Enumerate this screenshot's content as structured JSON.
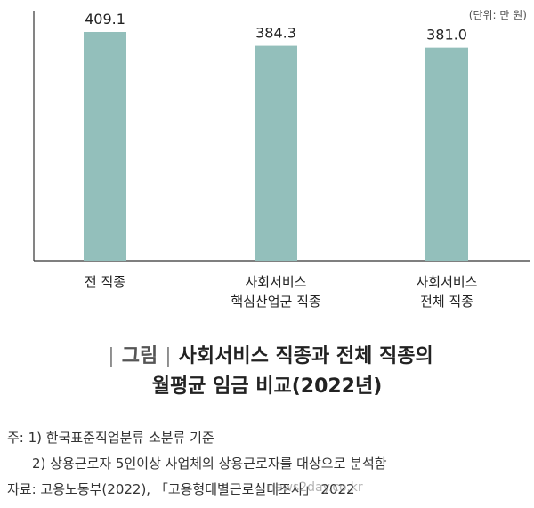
{
  "chart_data": {
    "type": "bar",
    "categories": [
      [
        "전 직종"
      ],
      [
        "사회서비스",
        "핵심산업군 직종"
      ],
      [
        "사회서비스",
        "전체 직종"
      ]
    ],
    "values": [
      409.1,
      384.3,
      381.0
    ],
    "value_labels": [
      "409.1",
      "384.3",
      "381.0"
    ],
    "unit_label": "(단위: 만 원)",
    "ylim": [
      0,
      420
    ],
    "grid": false,
    "bar_color": "#93bfbb"
  },
  "caption": {
    "tag": "그림",
    "title_line1": "사회서비스 직종과 전체 직종의",
    "title_line2": "월평균 임금 비교(2022년)"
  },
  "notes": {
    "note1": "주: 1) 한국표준직업분류 소분류 기준",
    "note2": "2) 상용근로자 5인이상 사업체의 상용근로자를 대상으로 분석함",
    "source": "자료: 고용노동부(2022), 「고용형태별근로실태조사」 2022"
  },
  "watermark": "news2day.co.kr"
}
